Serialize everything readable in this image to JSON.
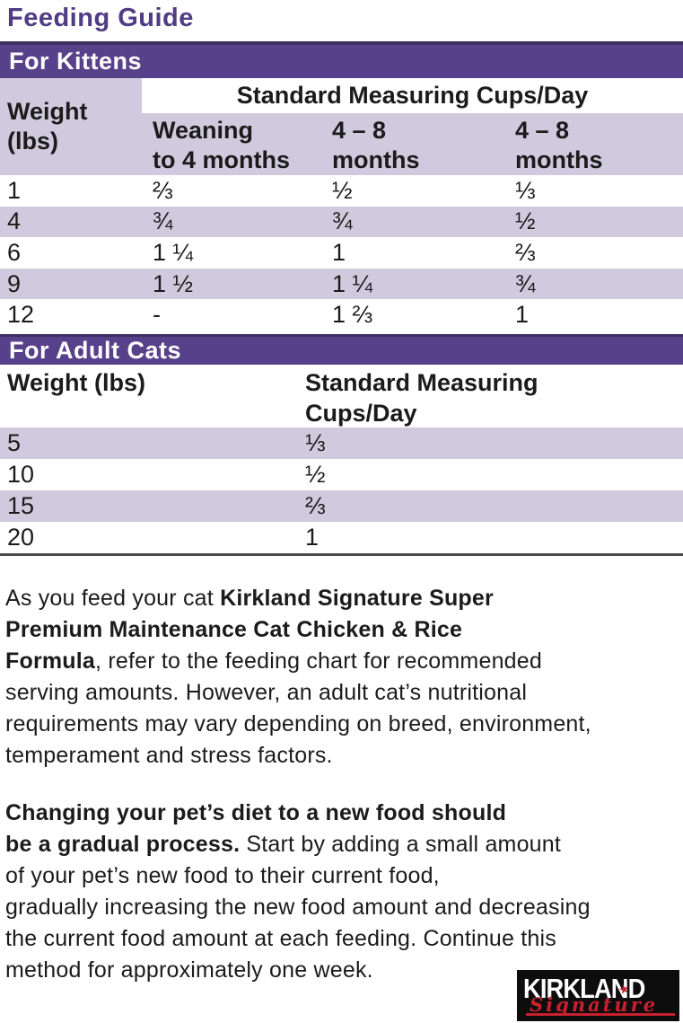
{
  "page": {
    "title": "Feeding Guide"
  },
  "colors": {
    "bar_purple": "#57418a",
    "bar_top_edge": "#3f2e63",
    "row_lavender": "#cfcadd",
    "title_purple": "#4f3c82",
    "text_black": "#1b1b1b",
    "logo_red": "#c8202f",
    "logo_black": "#0e0d0d"
  },
  "kittens": {
    "section_title": "For Kittens",
    "weight_header": {
      "line1": "Weight",
      "line2": "(lbs)"
    },
    "cups_header": "Standard Measuring Cups/Day",
    "columns": [
      {
        "line1": "Weaning",
        "line2": "to 4 months"
      },
      {
        "line1": "4 – 8",
        "line2": "months"
      },
      {
        "line1": "4 – 8",
        "line2": "months"
      }
    ],
    "rows": [
      {
        "w": "1",
        "c1": "⅔",
        "c2": "½",
        "c3": "⅓"
      },
      {
        "w": "4",
        "c1": "¾",
        "c2": "¾",
        "c3": "½"
      },
      {
        "w": "6",
        "c1": "1 ¼",
        "c2": "1",
        "c3": "⅔"
      },
      {
        "w": "9",
        "c1": "1 ½",
        "c2": "1 ¼",
        "c3": "¾"
      },
      {
        "w": "12",
        "c1": "-",
        "c2": "1 ⅔",
        "c3": "1"
      }
    ]
  },
  "adults": {
    "section_title": "For Adult Cats",
    "weight_header": "Weight (lbs)",
    "cups_header": {
      "line1": "Standard Measuring",
      "line2": "Cups/Day"
    },
    "rows": [
      {
        "w": "5",
        "c": "⅓"
      },
      {
        "w": "10",
        "c": "½"
      },
      {
        "w": "15",
        "c": "⅔"
      },
      {
        "w": "20",
        "c": "1"
      }
    ]
  },
  "paragraph1": {
    "lines": [
      {
        "normal": "As you feed your cat ",
        "bold": "Kirkland Signature Super"
      },
      {
        "bold": "Premium Maintenance Cat Chicken & Rice"
      },
      {
        "bold": "Formula",
        "normal": ", refer to the feeding chart for recommended"
      },
      {
        "normal": "serving amounts. However, an adult cat’s nutritional"
      },
      {
        "normal": "requirements may vary depending on breed, environment,"
      },
      {
        "normal": "temperament and stress factors."
      }
    ]
  },
  "paragraph2": {
    "lines": [
      {
        "bold": "Changing your pet’s diet to a new food should"
      },
      {
        "bold": "be a gradual process.",
        "normal": " Start by adding a small amount"
      },
      {
        "normal": "of your pet’s new food to their current food,"
      },
      {
        "normal": "gradually increasing the new food amount and decreasing"
      },
      {
        "normal": "the current food amount at each feeding. Continue this"
      },
      {
        "normal": "method for approximately one week."
      }
    ]
  },
  "logo": {
    "brand": "KIRKLAND",
    "script": "Signature",
    "star_icon": "star-icon"
  }
}
